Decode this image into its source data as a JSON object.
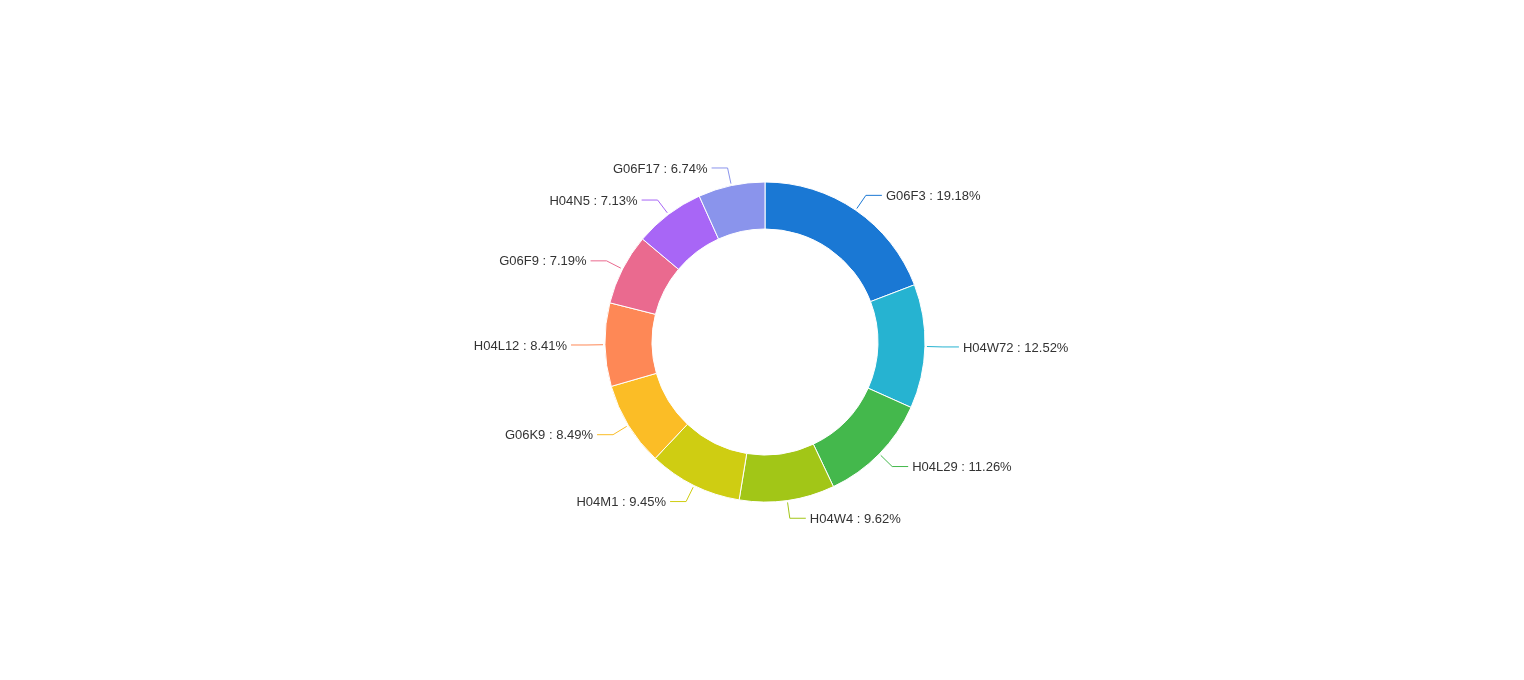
{
  "chart_data": {
    "type": "donut",
    "categories": [
      "G06F3",
      "H04W72",
      "H04L29",
      "H04W4",
      "H04M1",
      "G06K9",
      "H04L12",
      "G06F9",
      "H04N5",
      "G06F17"
    ],
    "values": [
      19.18,
      12.52,
      11.26,
      9.62,
      9.45,
      8.49,
      8.41,
      7.19,
      7.13,
      6.74
    ],
    "value_labels": [
      "19.18%",
      "12.52%",
      "11.26%",
      "9.62%",
      "9.45%",
      "8.49%",
      "8.41%",
      "7.19%",
      "7.13%",
      "6.74%"
    ],
    "colors": [
      "#1a78d4",
      "#26b3d1",
      "#44b84c",
      "#a2c617",
      "#cfcd12",
      "#fbbd26",
      "#fe8856",
      "#ea6a8f",
      "#a866f6",
      "#8a94ec"
    ]
  }
}
